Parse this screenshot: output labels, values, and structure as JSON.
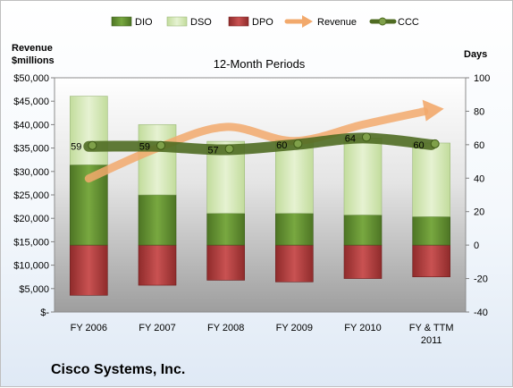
{
  "company": "Cisco Systems, Inc.",
  "chart_data": {
    "type": "bar",
    "title": "12-Month Periods",
    "categories": [
      "FY 2006",
      "FY 2007",
      "FY 2008",
      "FY 2009",
      "FY 2010",
      "FY & TTM 2011"
    ],
    "left_axis": {
      "title_line1": "Revenue",
      "title_line2": "$millions",
      "range": [
        0,
        50000
      ],
      "ticks": [
        "$-",
        "$5,000",
        "$10,000",
        "$15,000",
        "$20,000",
        "$25,000",
        "$30,000",
        "$35,000",
        "$40,000",
        "$45,000",
        "$50,000"
      ]
    },
    "right_axis": {
      "title": "Days",
      "range": [
        -40,
        100
      ],
      "ticks": [
        "-40",
        "-20",
        "0",
        "20",
        "40",
        "60",
        "80",
        "100"
      ]
    },
    "series": [
      {
        "name": "DIO",
        "kind": "stacked-bar",
        "axis": "days",
        "color": "#5e8a2e",
        "values": [
          48,
          30,
          19,
          19,
          18,
          17
        ]
      },
      {
        "name": "DSO",
        "kind": "stacked-bar",
        "axis": "days",
        "color": "#d3e8b3",
        "values": [
          41,
          42,
          43,
          44,
          46,
          44
        ]
      },
      {
        "name": "DPO",
        "kind": "negative-bar",
        "axis": "days",
        "color": "#b03a3a",
        "values": [
          -30,
          -24,
          -21,
          -22,
          -20,
          -19
        ]
      },
      {
        "name": "Revenue",
        "kind": "arrow-line",
        "axis": "revenue",
        "color": "#f2a96c",
        "values": [
          28500,
          35000,
          39500,
          36500,
          40000,
          43000
        ]
      },
      {
        "name": "CCC",
        "kind": "line",
        "axis": "days",
        "color": "#4f6b22",
        "values": [
          59,
          59,
          57,
          60,
          64,
          60
        ],
        "labels": [
          "59",
          "59",
          "57",
          "60",
          "64",
          "60"
        ]
      }
    ],
    "legend_position": "top",
    "grid": false
  }
}
